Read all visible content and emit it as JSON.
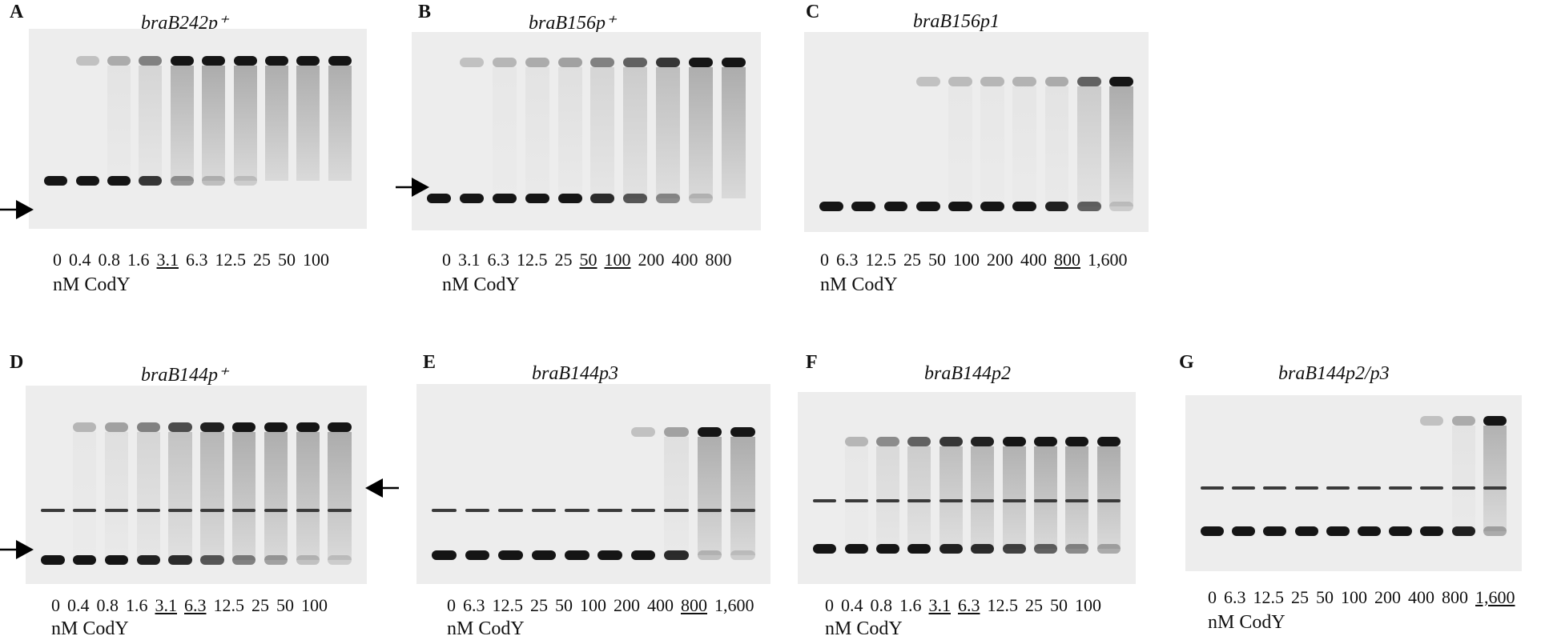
{
  "panels": [
    {
      "letter": "A",
      "title": "braB242p⁺",
      "unit": "nM CodY",
      "lanes": [
        {
          "label": "0",
          "underlined": false
        },
        {
          "label": "0.4",
          "underlined": false
        },
        {
          "label": "0.8",
          "underlined": false
        },
        {
          "label": "1.6",
          "underlined": false
        },
        {
          "label": "3.1",
          "underlined": true
        },
        {
          "label": "6.3",
          "underlined": false
        },
        {
          "label": "12.5",
          "underlined": false
        },
        {
          "label": "25",
          "underlined": false
        },
        {
          "label": "50",
          "underlined": false
        },
        {
          "label": "100",
          "underlined": false
        }
      ],
      "free_probe_fraction": [
        1.0,
        0.95,
        0.9,
        0.75,
        0.3,
        0.12,
        0.05,
        0.02,
        0.01,
        0.0
      ],
      "shifted_fraction": [
        0.0,
        0.05,
        0.15,
        0.35,
        0.85,
        0.95,
        0.95,
        0.9,
        0.9,
        0.9
      ]
    },
    {
      "letter": "B",
      "title": "braB156p⁺",
      "unit": "nM CodY",
      "lanes": [
        {
          "label": "0",
          "underlined": false
        },
        {
          "label": "3.1",
          "underlined": false
        },
        {
          "label": "6.3",
          "underlined": false
        },
        {
          "label": "12.5",
          "underlined": false
        },
        {
          "label": "25",
          "underlined": false
        },
        {
          "label": "50",
          "underlined": true
        },
        {
          "label": "100",
          "underlined": true
        },
        {
          "label": "200",
          "underlined": false
        },
        {
          "label": "400",
          "underlined": false
        },
        {
          "label": "800",
          "underlined": false
        }
      ],
      "free_probe_fraction": [
        1.0,
        0.95,
        0.95,
        0.95,
        0.9,
        0.8,
        0.6,
        0.35,
        0.1,
        0.0
      ],
      "shifted_fraction": [
        0.0,
        0.05,
        0.1,
        0.15,
        0.2,
        0.35,
        0.5,
        0.7,
        0.9,
        0.95
      ]
    },
    {
      "letter": "C",
      "title": "braB156p1",
      "unit": "nM CodY",
      "lanes": [
        {
          "label": "0",
          "underlined": false
        },
        {
          "label": "6.3",
          "underlined": false
        },
        {
          "label": "12.5",
          "underlined": false
        },
        {
          "label": "25",
          "underlined": false
        },
        {
          "label": "50",
          "underlined": false
        },
        {
          "label": "100",
          "underlined": false
        },
        {
          "label": "200",
          "underlined": false
        },
        {
          "label": "400",
          "underlined": false
        },
        {
          "label": "800",
          "underlined": true
        },
        {
          "label": "1,600",
          "underlined": false
        }
      ],
      "free_probe_fraction": [
        1.0,
        1.0,
        1.0,
        1.0,
        1.0,
        0.95,
        0.9,
        0.85,
        0.55,
        0.05
      ],
      "shifted_fraction": [
        0.0,
        0.0,
        0.0,
        0.05,
        0.08,
        0.1,
        0.12,
        0.15,
        0.5,
        0.95
      ]
    },
    {
      "letter": "D",
      "title": "braB144p⁺",
      "unit": "nM CodY",
      "lanes": [
        {
          "label": "0",
          "underlined": false
        },
        {
          "label": "0.4",
          "underlined": false
        },
        {
          "label": "0.8",
          "underlined": false
        },
        {
          "label": "1.6",
          "underlined": false
        },
        {
          "label": "3.1",
          "underlined": true
        },
        {
          "label": "6.3",
          "underlined": true
        },
        {
          "label": "12.5",
          "underlined": false
        },
        {
          "label": "25",
          "underlined": false
        },
        {
          "label": "50",
          "underlined": false
        },
        {
          "label": "100",
          "underlined": false
        }
      ],
      "free_probe_fraction": [
        1.0,
        0.95,
        0.9,
        0.85,
        0.8,
        0.6,
        0.4,
        0.25,
        0.1,
        0.05
      ],
      "shifted_fraction": [
        0.0,
        0.1,
        0.2,
        0.35,
        0.6,
        0.8,
        0.9,
        0.9,
        0.9,
        0.95
      ]
    },
    {
      "letter": "E",
      "title": "braB144p3",
      "unit": "nM CodY",
      "lanes": [
        {
          "label": "0",
          "underlined": false
        },
        {
          "label": "6.3",
          "underlined": false
        },
        {
          "label": "12.5",
          "underlined": false
        },
        {
          "label": "25",
          "underlined": false
        },
        {
          "label": "50",
          "underlined": false
        },
        {
          "label": "100",
          "underlined": false
        },
        {
          "label": "200",
          "underlined": false
        },
        {
          "label": "400",
          "underlined": false
        },
        {
          "label": "800",
          "underlined": true
        },
        {
          "label": "1,600",
          "underlined": false
        }
      ],
      "free_probe_fraction": [
        1.0,
        1.0,
        1.0,
        1.0,
        1.0,
        1.0,
        0.95,
        0.8,
        0.1,
        0.05
      ],
      "shifted_fraction": [
        0.0,
        0.0,
        0.0,
        0.0,
        0.0,
        0.0,
        0.05,
        0.2,
        0.9,
        0.95
      ]
    },
    {
      "letter": "F",
      "title": "braB144p2",
      "unit": "nM CodY",
      "lanes": [
        {
          "label": "0",
          "underlined": false
        },
        {
          "label": "0.4",
          "underlined": false
        },
        {
          "label": "0.8",
          "underlined": false
        },
        {
          "label": "1.6",
          "underlined": false
        },
        {
          "label": "3.1",
          "underlined": true
        },
        {
          "label": "6.3",
          "underlined": true
        },
        {
          "label": "12.5",
          "underlined": false
        },
        {
          "label": "25",
          "underlined": false
        },
        {
          "label": "50",
          "underlined": false
        },
        {
          "label": "100",
          "underlined": false
        }
      ],
      "free_probe_fraction": [
        1.0,
        0.95,
        0.95,
        0.9,
        0.85,
        0.8,
        0.7,
        0.55,
        0.35,
        0.2
      ],
      "shifted_fraction": [
        0.0,
        0.1,
        0.3,
        0.5,
        0.7,
        0.8,
        0.85,
        0.9,
        0.9,
        0.95
      ]
    },
    {
      "letter": "G",
      "title": "braB144p2/p3",
      "unit": "nM CodY",
      "lanes": [
        {
          "label": "0",
          "underlined": false
        },
        {
          "label": "6.3",
          "underlined": false
        },
        {
          "label": "12.5",
          "underlined": false
        },
        {
          "label": "25",
          "underlined": false
        },
        {
          "label": "50",
          "underlined": false
        },
        {
          "label": "100",
          "underlined": false
        },
        {
          "label": "200",
          "underlined": false
        },
        {
          "label": "400",
          "underlined": false
        },
        {
          "label": "800",
          "underlined": false
        },
        {
          "label": "1,600",
          "underlined": true
        }
      ],
      "free_probe_fraction": [
        1.0,
        1.0,
        1.0,
        1.0,
        1.0,
        1.0,
        1.0,
        0.95,
        0.85,
        0.2
      ],
      "shifted_fraction": [
        0.0,
        0.0,
        0.0,
        0.0,
        0.0,
        0.0,
        0.0,
        0.05,
        0.15,
        0.85
      ]
    }
  ],
  "colors": {
    "gel_background": "#ededed",
    "band": "#151515",
    "text": "#111111"
  }
}
